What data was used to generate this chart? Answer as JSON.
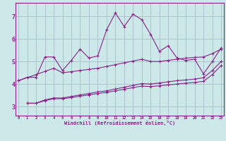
{
  "title": "",
  "xlabel": "Windchill (Refroidissement éolien,°C)",
  "background_color": "#cce8e8",
  "grid_color": "#aabbcc",
  "line_color": "#882288",
  "spine_color": "#882288",
  "x_ticks": [
    0,
    1,
    2,
    3,
    4,
    5,
    6,
    7,
    8,
    9,
    10,
    11,
    12,
    13,
    14,
    15,
    16,
    17,
    18,
    19,
    20,
    21,
    22,
    23
  ],
  "y_ticks": [
    3,
    4,
    5,
    6,
    7
  ],
  "ylim": [
    2.6,
    7.6
  ],
  "xlim": [
    -0.3,
    23.3
  ],
  "series1_x": [
    0,
    1,
    2,
    3,
    4,
    5,
    6,
    7,
    8,
    9,
    10,
    11,
    12,
    13,
    14,
    15,
    16,
    17,
    18,
    19,
    20,
    21,
    22,
    23
  ],
  "series1_y": [
    4.15,
    4.3,
    4.3,
    5.2,
    5.2,
    4.6,
    5.05,
    5.55,
    5.15,
    5.25,
    6.4,
    7.15,
    6.55,
    7.1,
    6.85,
    6.2,
    5.45,
    5.7,
    5.15,
    5.05,
    5.1,
    4.45,
    5.0,
    5.6
  ],
  "series2_x": [
    0,
    2,
    3,
    4,
    5,
    6,
    7,
    8,
    9,
    10,
    11,
    12,
    13,
    14,
    15,
    16,
    17,
    18,
    19,
    20,
    21,
    22,
    23
  ],
  "series2_y": [
    4.15,
    4.42,
    4.56,
    4.7,
    4.5,
    4.55,
    4.6,
    4.65,
    4.7,
    4.78,
    4.86,
    4.94,
    5.02,
    5.1,
    5.0,
    5.0,
    5.05,
    5.1,
    5.15,
    5.18,
    5.2,
    5.35,
    5.55
  ],
  "series3_x": [
    1,
    2,
    3,
    4,
    5,
    6,
    7,
    8,
    9,
    10,
    11,
    12,
    13,
    14,
    15,
    16,
    17,
    18,
    19,
    20,
    21,
    22,
    23
  ],
  "series3_y": [
    3.15,
    3.15,
    3.3,
    3.38,
    3.38,
    3.45,
    3.52,
    3.58,
    3.65,
    3.7,
    3.78,
    3.86,
    3.94,
    4.02,
    4.0,
    4.05,
    4.1,
    4.15,
    4.18,
    4.22,
    4.28,
    4.6,
    5.0
  ],
  "series4_x": [
    1,
    2,
    3,
    4,
    5,
    6,
    7,
    8,
    9,
    10,
    11,
    12,
    13,
    14,
    15,
    16,
    17,
    18,
    19,
    20,
    21,
    22,
    23
  ],
  "series4_y": [
    3.15,
    3.15,
    3.26,
    3.35,
    3.35,
    3.4,
    3.46,
    3.52,
    3.58,
    3.63,
    3.7,
    3.77,
    3.84,
    3.91,
    3.89,
    3.92,
    3.96,
    4.0,
    4.04,
    4.07,
    4.12,
    4.42,
    4.82
  ]
}
